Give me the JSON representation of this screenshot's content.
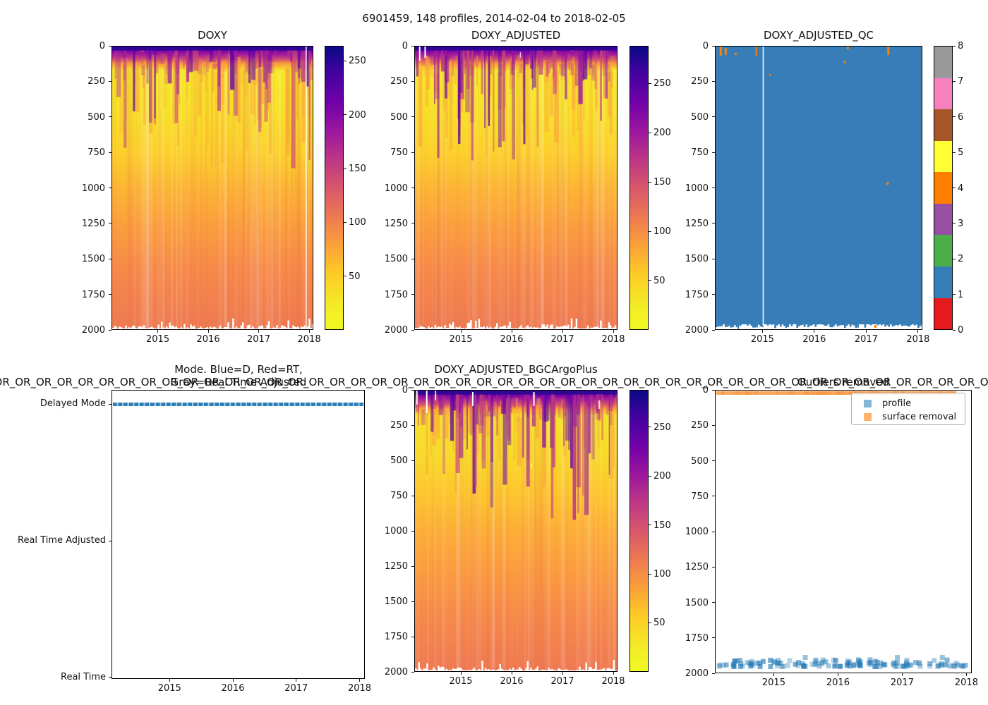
{
  "figure": {
    "suptitle": "6901459, 148 profiles, 2014-02-04 to 2018-02-05"
  },
  "panels": {
    "doxy": {
      "title": "DOXY"
    },
    "doxy_adjusted": {
      "title": "DOXY_ADJUSTED"
    },
    "qc": {
      "title": "DOXY_ADJUSTED_QC"
    },
    "mode": {
      "title_line1": "Mode. Blue=D, Red=RT,",
      "title_line2": "Gray=Real Time Adjusted",
      "categories": [
        "Delayed Mode",
        "Real Time Adjusted",
        "Real Time"
      ]
    },
    "bgc": {
      "title": "DOXY_ADJUSTED_BGCArgoPlus",
      "or_title": "OR_OR_OR_OR_OR_OR_OR_OR_OR_OR_OR_OR_OR_OR_OR_OR_OR_OR_OR_OR_OR_OR_OR_OR_OR_OR_OR_OR_OR_OR_OR_OR_OR_OR_OR_OR_OR_OR_OR_OR_OR_OR_OR_OR_OR_OR_OR_OR_OR_OR_OR_OR_OR_OR_OR_OR"
    },
    "outliers": {
      "title": "Outliers removed",
      "legend": [
        "profile",
        "surface removal"
      ]
    }
  },
  "ticks": {
    "depth": [
      "0",
      "250",
      "500",
      "750",
      "1000",
      "1250",
      "1500",
      "1750",
      "2000"
    ],
    "years": [
      "2015",
      "2016",
      "2017",
      "2018"
    ],
    "oxygen_cb": [
      "250",
      "200",
      "150",
      "100",
      "50"
    ],
    "qc_cb": [
      "0",
      "1",
      "2",
      "3",
      "4",
      "5",
      "6",
      "7",
      "8"
    ]
  },
  "colors": {
    "qc_segments_bottom_to_top": [
      "#e41a1c",
      "#377eb8",
      "#4daf4a",
      "#984ea3",
      "#ff7f00",
      "#ffff33",
      "#a65628",
      "#f781bf",
      "#999999"
    ],
    "qc_background": "#377eb8",
    "qc_flag_mark": "#ff7f00",
    "mode_line": "#1f77b4",
    "profile_marker": "#1f77b4",
    "surface_marker": "#ff7f0e",
    "legend_profile_swatch": "rgba(31,119,180,0.55)",
    "legend_surface_swatch": "rgba(255,127,14,0.60)",
    "plasma_high": "#0d0887",
    "plasma_low": "#f0f921"
  },
  "render": {
    "heatmaps": {
      "doxy": {
        "seed": 7,
        "stops": [
          [
            0,
            "#2e0595"
          ],
          [
            1.3,
            "#7701a8"
          ],
          [
            3,
            "#a62098"
          ],
          [
            4.5,
            "#d14e72"
          ],
          [
            6,
            "#fa9b3d"
          ],
          [
            8.5,
            "#f6e826"
          ],
          [
            24,
            "#f8df28"
          ],
          [
            38,
            "#fccf2b"
          ],
          [
            50,
            "#fcb534"
          ],
          [
            63,
            "#fb9f3d"
          ],
          [
            78,
            "#f78a49"
          ],
          [
            100,
            "#ee7a52"
          ]
        ],
        "wisps": [
          "#5c01a6",
          "#8f0da4",
          "#b12a90",
          "#cc4778"
        ],
        "wisp_n": 75,
        "wisp_depth": 0.42,
        "streak": "#fb9d3e",
        "deep": "#e8684a",
        "gaps": [
          [
            0.965,
            1.5,
            0,
            1
          ]
        ]
      },
      "doxy_adjusted": {
        "seed": 13,
        "stops": [
          [
            0,
            "#2e0595"
          ],
          [
            1.3,
            "#7701a8"
          ],
          [
            3,
            "#a62098"
          ],
          [
            4.5,
            "#d14e72"
          ],
          [
            6,
            "#fa9b3d"
          ],
          [
            8.5,
            "#f6e826"
          ],
          [
            24,
            "#f8df28"
          ],
          [
            38,
            "#fccf2b"
          ],
          [
            50,
            "#fcb534"
          ],
          [
            63,
            "#fb9f3d"
          ],
          [
            78,
            "#f78a49"
          ],
          [
            100,
            "#ee7a52"
          ]
        ],
        "wisps": [
          "#5c01a6",
          "#8f0da4",
          "#b12a90",
          "#cc4778"
        ],
        "wisp_n": 75,
        "wisp_depth": 0.42,
        "streak": "#fb9d3e",
        "deep": "#e8684a",
        "gaps": [
          [
            0.02,
            2,
            0,
            0.05
          ],
          [
            0.047,
            2,
            0,
            0.04
          ],
          [
            0.52,
            1,
            0.02,
            0.02
          ]
        ]
      },
      "bgc": {
        "seed": 29,
        "stops": [
          [
            0,
            "#2d0594"
          ],
          [
            1.5,
            "#71019f"
          ],
          [
            3,
            "#a62098"
          ],
          [
            5,
            "#d8576b"
          ],
          [
            6.5,
            "#fca636"
          ],
          [
            9,
            "#f5e426"
          ],
          [
            24,
            "#f8d92a"
          ],
          [
            38,
            "#fdc32e"
          ],
          [
            50,
            "#fcae37"
          ],
          [
            64,
            "#fb9c3f"
          ],
          [
            80,
            "#f68a4a"
          ],
          [
            100,
            "#ef7952"
          ]
        ],
        "wisps": [
          "#5c01a6",
          "#8f0da4",
          "#b12a90",
          "#cc4778"
        ],
        "wisp_n": 85,
        "wisp_depth": 0.45,
        "streak": "#fb9d3e",
        "deep": "#e8684a",
        "gaps": [
          [
            0.006,
            2,
            0,
            0.05
          ],
          [
            0.055,
            2,
            0,
            0.08
          ],
          [
            0.1,
            1.5,
            0,
            0.035
          ],
          [
            0.283,
            2,
            0.005,
            0.05
          ],
          [
            0.586,
            2,
            0.005,
            0.05
          ],
          [
            0.575,
            1.5,
            0.26,
            0.015
          ],
          [
            0.91,
            1.5,
            0.035,
            0.03
          ]
        ]
      }
    },
    "qc_panel": {
      "gap_x": 0.231,
      "marks": [
        [
          0.02,
          0,
          3,
          13
        ],
        [
          0.044,
          0.005,
          3,
          10
        ],
        [
          0.092,
          0.022,
          3,
          3
        ],
        [
          0.194,
          0,
          2,
          13
        ],
        [
          0.262,
          0.097,
          2,
          3
        ],
        [
          0.622,
          0.052,
          3,
          3
        ],
        [
          0.636,
          0,
          3,
          4
        ],
        [
          0.833,
          0,
          3,
          12
        ],
        [
          0.83,
          0.479,
          3,
          4
        ],
        [
          0.77,
          0.985,
          3,
          4
        ]
      ]
    },
    "outliers_panel": {
      "band_end": 0.94,
      "band_color": "#fca85c",
      "band_mottle": "#f8923e",
      "square_n": 130
    }
  },
  "chart_data": [
    {
      "id": "doxy",
      "type": "heatmap",
      "title": "DOXY",
      "x_range": [
        "2014-02-04",
        "2018-02-05"
      ],
      "x_ticks": [
        "2015",
        "2016",
        "2017",
        "2018"
      ],
      "y_range": [
        0,
        2000
      ],
      "y_inverted": true,
      "y_ticks": [
        0,
        250,
        500,
        750,
        1000,
        1250,
        1500,
        1750,
        2000
      ],
      "colormap": "plasma reversed (yellow=low, dark blue=high)",
      "colorbar_ticks": [
        50,
        100,
        150,
        200,
        250
      ],
      "value_range": [
        0,
        265
      ],
      "mean_profile_depth_value": [
        [
          0,
          255
        ],
        [
          40,
          230
        ],
        [
          80,
          60
        ],
        [
          150,
          30
        ],
        [
          400,
          30
        ],
        [
          600,
          40
        ],
        [
          800,
          50
        ],
        [
          1000,
          60
        ],
        [
          1300,
          75
        ],
        [
          1600,
          88
        ],
        [
          2000,
          100
        ]
      ],
      "notes": "high-oxygen purple surface band 0-80 dbar with wisps to ~250; yellow oxygen minimum 100-600 dbar; gradual increase to salmon (~100) at 2000 dbar; ragged white data edge below ~1980 dbar; white gap column near 2018"
    },
    {
      "id": "doxy_adjusted",
      "type": "heatmap",
      "title": "DOXY_ADJUSTED",
      "x_range": [
        "2014-02-04",
        "2018-02-05"
      ],
      "x_ticks": [
        "2015",
        "2016",
        "2017",
        "2018"
      ],
      "y_range": [
        0,
        2000
      ],
      "y_inverted": true,
      "y_ticks": [
        0,
        250,
        500,
        750,
        1000,
        1250,
        1500,
        1750,
        2000
      ],
      "colormap": "plasma reversed",
      "colorbar_ticks": [
        50,
        100,
        150,
        200,
        250
      ],
      "value_range": [
        0,
        290
      ],
      "mean_profile_depth_value": [
        [
          0,
          280
        ],
        [
          40,
          250
        ],
        [
          80,
          65
        ],
        [
          150,
          33
        ],
        [
          400,
          33
        ],
        [
          600,
          44
        ],
        [
          800,
          55
        ],
        [
          1000,
          66
        ],
        [
          1300,
          80
        ],
        [
          1600,
          92
        ],
        [
          2000,
          105
        ]
      ],
      "notes": "same structure as DOXY with slightly higher values; small white missing-data columns near 2014 start"
    },
    {
      "id": "doxy_adjusted_qc",
      "type": "heatmap",
      "title": "DOXY_ADJUSTED_QC",
      "x_range": [
        "2014-02-04",
        "2018-02-05"
      ],
      "x_ticks": [
        "2015",
        "2016",
        "2017",
        "2018"
      ],
      "y_range": [
        0,
        2000
      ],
      "y_inverted": true,
      "categories": [
        0,
        1,
        2,
        3,
        4,
        5,
        6,
        7,
        8
      ],
      "category_colors": [
        "#e41a1c",
        "#377eb8",
        "#4daf4a",
        "#984ea3",
        "#ff7f00",
        "#ffff33",
        "#a65628",
        "#f781bf",
        "#999999"
      ],
      "dominant_value": 1,
      "anomalies": [
        {
          "time": "early 2014",
          "depth": "0-60",
          "qc": 4
        },
        {
          "time": "2014.2",
          "depth": "0-50",
          "qc": 4
        },
        {
          "time": "2015.0",
          "depth": "full column",
          "value": "missing (white)"
        },
        {
          "time": "2016.6",
          "depth": "~200",
          "qc": 4
        },
        {
          "time": "2017.5",
          "depth": "0-60",
          "qc": 4
        },
        {
          "time": "2017.5",
          "depth": "~960",
          "qc": 4
        }
      ]
    },
    {
      "id": "mode",
      "type": "scatter",
      "title": "Mode. Blue=D, Red=RT, Gray=Real Time Adjusted",
      "x_range": [
        "2014-02-04",
        "2018-02-05"
      ],
      "x_ticks": [
        "2015",
        "2016",
        "2017",
        "2018"
      ],
      "y_categories": [
        "Delayed Mode",
        "Real Time Adjusted",
        "Real Time"
      ],
      "series": [
        {
          "name": "mode",
          "color": "#1f77b4",
          "y": "Delayed Mode",
          "n_points": 148,
          "marker": "square dashes spanning full time range"
        }
      ]
    },
    {
      "id": "doxy_adjusted_bgcargoplus",
      "type": "heatmap",
      "title": "DOXY_ADJUSTED_BGCArgoPlus",
      "x_range": [
        "2014-02-04",
        "2018-02-05"
      ],
      "x_ticks": [
        "2015",
        "2016",
        "2017",
        "2018"
      ],
      "y_range": [
        0,
        2000
      ],
      "y_inverted": true,
      "y_ticks": [
        0,
        250,
        500,
        750,
        1000,
        1250,
        1500,
        1750,
        2000
      ],
      "colormap": "plasma reversed",
      "colorbar_ticks": [
        50,
        100,
        150,
        200,
        250
      ],
      "value_range": [
        0,
        290
      ],
      "notes": "same field as DOXY_ADJUSTED after BGC-Argo+ outlier/surface removal; small white gap columns near start and mid-2015/2016"
    },
    {
      "id": "outliers_removed",
      "type": "scatter",
      "title": "Outliers removed",
      "x_range": [
        "2014-02-04",
        "2018-02-05"
      ],
      "x_ticks": [
        "2015",
        "2016",
        "2017",
        "2018"
      ],
      "y_range": [
        0,
        2000
      ],
      "y_inverted": true,
      "y_ticks": [
        0,
        250,
        500,
        750,
        1000,
        1250,
        1500,
        1750,
        2000
      ],
      "legend": [
        "profile",
        "surface removal"
      ],
      "series": [
        {
          "name": "profile",
          "color": "#1f77b4",
          "marker": "square",
          "y_approx": "1950-2030 (deepest sample of each profile)",
          "n_points": 148
        },
        {
          "name": "surface removal",
          "color": "#ff7f0e",
          "marker": "square",
          "y_approx": "0-15 (removed surface samples)",
          "x_span_fraction": [
            0,
            0.94
          ]
        }
      ]
    }
  ]
}
